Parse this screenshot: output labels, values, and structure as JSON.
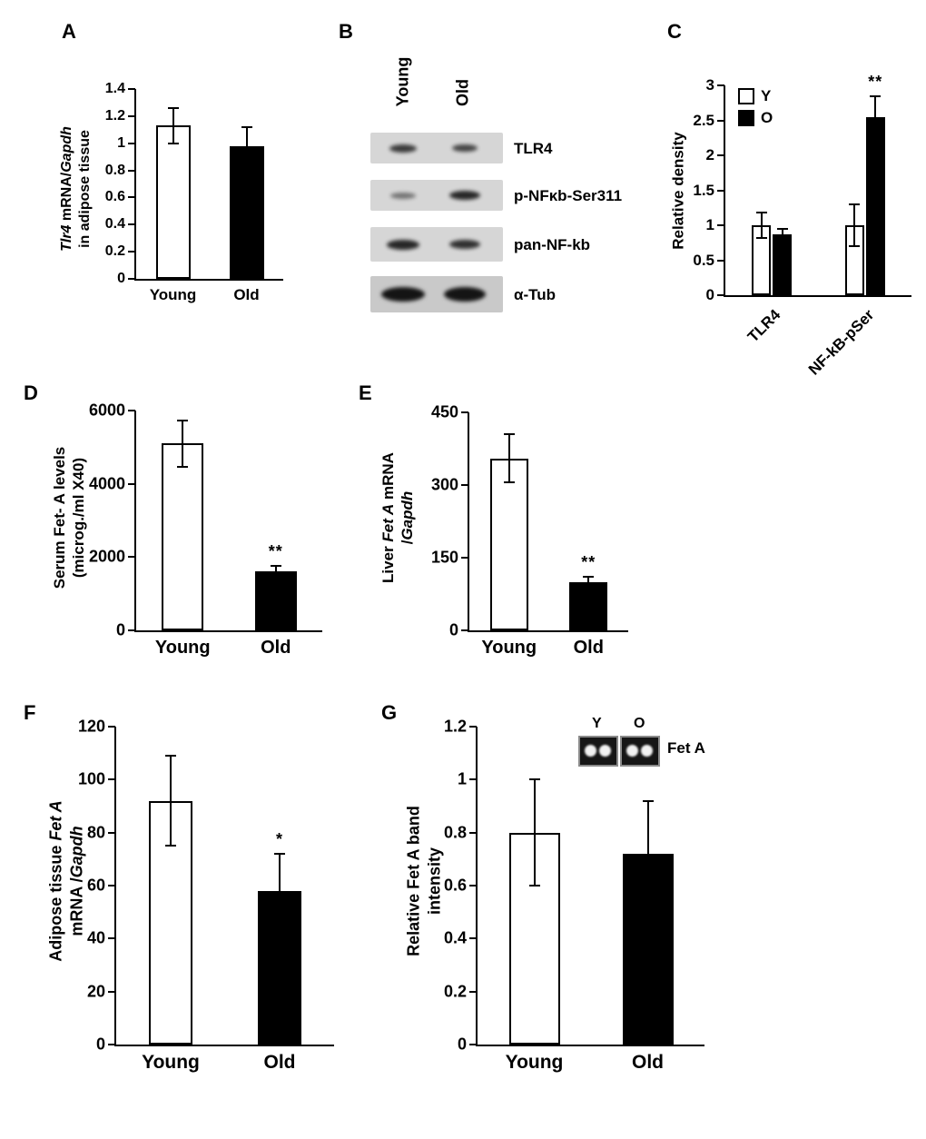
{
  "panels": {
    "A": {
      "letter": "A"
    },
    "B": {
      "letter": "B",
      "col_labels": [
        "Young",
        "Old"
      ],
      "rows": [
        {
          "label": "TLR4",
          "bands": [
            [
              30,
              9,
              0.8
            ],
            [
              28,
              8,
              0.75
            ]
          ]
        },
        {
          "label": "p-NFκb-Ser311",
          "bands": [
            [
              28,
              7,
              0.5
            ],
            [
              34,
              10,
              0.9
            ]
          ]
        },
        {
          "label": "pan-NF-kb",
          "bands": [
            [
              36,
              11,
              0.9
            ],
            [
              34,
              10,
              0.85
            ]
          ]
        },
        {
          "label": "α-Tub",
          "bands": [
            [
              48,
              16,
              1
            ],
            [
              46,
              16,
              1
            ]
          ]
        }
      ]
    },
    "C": {
      "letter": "C"
    },
    "D": {
      "letter": "D"
    },
    "E": {
      "letter": "E"
    },
    "F": {
      "letter": "F"
    },
    "G": {
      "letter": "G",
      "inset": {
        "labels": [
          "Y",
          "O"
        ],
        "caption": "Fet A"
      }
    }
  },
  "chart_data": [
    {
      "id": "A",
      "type": "bar",
      "title": "",
      "ylabel": "Tlr4 mRNA/Gapdh in adipose tissue",
      "ylabel_segments": [
        [
          [
            "Tlr4",
            true
          ],
          [
            " mRNA/",
            false
          ],
          [
            "Gapdh",
            true
          ]
        ],
        [
          [
            "in adipose tissue",
            false
          ]
        ]
      ],
      "categories": [
        "Young",
        "Old"
      ],
      "values": [
        1.13,
        0.98
      ],
      "errors": [
        0.13,
        0.14
      ],
      "fills": [
        "white",
        "black"
      ],
      "sig": [
        "",
        ""
      ],
      "ymax": 1.4,
      "ylim": [
        0,
        1.4
      ],
      "yticks": [
        "0",
        "0.2",
        "0.4",
        "0.6",
        "0.8",
        "1",
        "1.2",
        "1.4"
      ]
    },
    {
      "id": "C",
      "type": "grouped-bar",
      "title": "",
      "ylabel": "Relative density",
      "ylabel_segments": [
        [
          [
            "Relative density",
            false
          ]
        ]
      ],
      "categories": [
        "TLR4",
        "NF-kB-pSer"
      ],
      "series": [
        {
          "name": "Y",
          "fill": "white",
          "values": [
            1.0,
            1.0
          ],
          "errors": [
            0.18,
            0.3
          ],
          "sig": [
            "",
            ""
          ]
        },
        {
          "name": "O",
          "fill": "black",
          "values": [
            0.87,
            2.55
          ],
          "errors": [
            0.08,
            0.3
          ],
          "sig": [
            "",
            "**"
          ]
        }
      ],
      "legend": [
        "Y",
        "O"
      ],
      "rotx": true,
      "ymax": 3,
      "ylim": [
        0,
        3
      ],
      "yticks": [
        "0",
        "0.5",
        "1",
        "1.5",
        "2",
        "2.5",
        "3"
      ]
    },
    {
      "id": "D",
      "type": "bar",
      "title": "",
      "ylabel": "Serum Fet- A levels (microg./ml X40)",
      "ylabel_segments": [
        [
          [
            "Serum Fet- A levels",
            false
          ]
        ],
        [
          [
            "(microg./ml X40)",
            false
          ]
        ]
      ],
      "categories": [
        "Young",
        "Old"
      ],
      "values": [
        5100,
        1600
      ],
      "errors": [
        625,
        150
      ],
      "fills": [
        "white",
        "black"
      ],
      "sig": [
        "",
        "**"
      ],
      "ymax": 6000,
      "ylim": [
        0,
        6000
      ],
      "yticks": [
        "0",
        "2000",
        "4000",
        "6000"
      ]
    },
    {
      "id": "E",
      "type": "bar",
      "title": "",
      "ylabel": "Liver Fet A mRNA /Gapdh",
      "ylabel_segments": [
        [
          [
            "Liver ",
            false
          ],
          [
            "Fet A",
            true
          ],
          [
            " mRNA",
            false
          ]
        ],
        [
          [
            "/",
            false
          ],
          [
            "Gapdh",
            true
          ]
        ]
      ],
      "categories": [
        "Young",
        "Old"
      ],
      "values": [
        355,
        100
      ],
      "errors": [
        50,
        10
      ],
      "fills": [
        "white",
        "black"
      ],
      "sig": [
        "",
        "**"
      ],
      "ymax": 450,
      "ylim": [
        0,
        450
      ],
      "yticks": [
        "0",
        "150",
        "300",
        "450"
      ]
    },
    {
      "id": "F",
      "type": "bar",
      "title": "",
      "ylabel": "Adipose tissue Fet A mRNA /Gapdh",
      "ylabel_segments": [
        [
          [
            "Adipose tissue ",
            false
          ],
          [
            "Fet A",
            true
          ]
        ],
        [
          [
            "mRNA /",
            false
          ],
          [
            "Gapdh",
            true
          ]
        ]
      ],
      "categories": [
        "Young",
        "Old"
      ],
      "values": [
        92,
        58
      ],
      "errors": [
        17,
        14
      ],
      "fills": [
        "white",
        "black"
      ],
      "sig": [
        "",
        "*"
      ],
      "ymax": 120,
      "ylim": [
        0,
        120
      ],
      "yticks": [
        "0",
        "20",
        "40",
        "60",
        "80",
        "100",
        "120"
      ]
    },
    {
      "id": "G",
      "type": "bar",
      "title": "",
      "ylabel": "Relative Fet A band intensity",
      "ylabel_segments": [
        [
          [
            "Relative Fet A band",
            false
          ]
        ],
        [
          [
            "intensity",
            false
          ]
        ]
      ],
      "categories": [
        "Young",
        "Old"
      ],
      "values": [
        0.8,
        0.72
      ],
      "errors": [
        0.2,
        0.2
      ],
      "fills": [
        "white",
        "black"
      ],
      "sig": [
        "",
        ""
      ],
      "ymax": 1.2,
      "ylim": [
        0,
        1.2
      ],
      "yticks": [
        "0",
        "0.2",
        "0.4",
        "0.6",
        "0.8",
        "1",
        "1.2"
      ]
    }
  ]
}
